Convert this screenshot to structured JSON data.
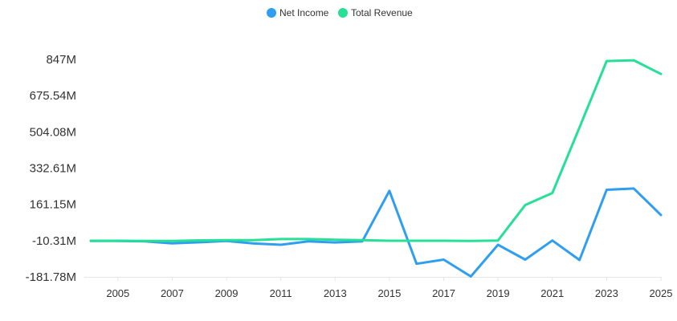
{
  "chart_data": {
    "type": "line",
    "x": [
      "2004",
      "2005",
      "2006",
      "2007",
      "2008",
      "2009",
      "2010",
      "2011",
      "2012",
      "2013",
      "2014",
      "2015",
      "2016",
      "2017",
      "2018",
      "2019",
      "2020",
      "2021",
      "2022",
      "2023",
      "2024",
      "2025"
    ],
    "x_tick_labels": [
      "2005",
      "2007",
      "2009",
      "2011",
      "2013",
      "2015",
      "2017",
      "2019",
      "2021",
      "2023",
      "2025"
    ],
    "y_tick_labels": [
      "847M",
      "675.54M",
      "504.08M",
      "332.61M",
      "161.15M",
      "-10.31M",
      "-181.78M"
    ],
    "ylim": [
      -181.78,
      847
    ],
    "series": [
      {
        "name": "Net Income",
        "color": "#2f9ef0",
        "values": [
          -12,
          -12,
          -14,
          -23,
          -18,
          -12,
          -24,
          -30,
          -14,
          -19,
          -14,
          225,
          -120,
          -100,
          -180,
          -30,
          -100,
          -10,
          -102,
          230,
          236,
          111
        ]
      },
      {
        "name": "Total Revenue",
        "color": "#25e096",
        "values": [
          -11,
          -11,
          -12,
          -12,
          -9,
          -8,
          -8,
          -3,
          -3,
          -6,
          -8,
          -11,
          -11,
          -11,
          -12,
          -10,
          158,
          215,
          525,
          839,
          843,
          778
        ]
      }
    ],
    "legend_position": "top-center",
    "grid": false
  }
}
